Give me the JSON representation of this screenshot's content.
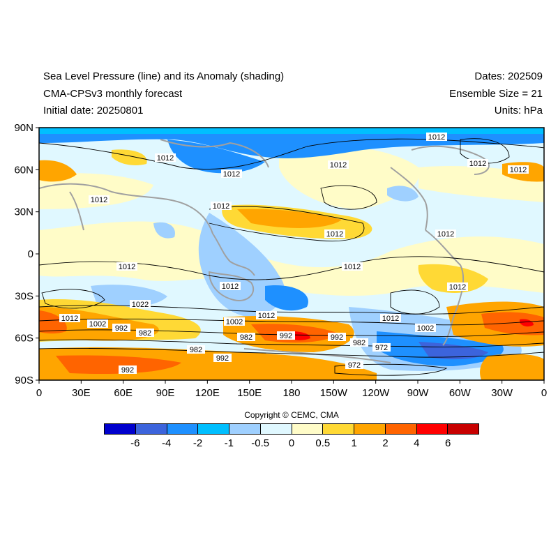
{
  "header": {
    "title_line1": "Sea Level Pressure (line) and its Anomaly (shading)",
    "title_line2": "CMA-CPSv3 monthly forecast",
    "title_line3": "Initial date: 20250801",
    "dates": "Dates: 202509",
    "ensemble": "Ensemble Size = 21",
    "units": "Units: hPa"
  },
  "map": {
    "lat_labels": [
      "90N",
      "60N",
      "30N",
      "0",
      "30S",
      "60S",
      "90S"
    ],
    "lon_labels": [
      "0",
      "30E",
      "60E",
      "90E",
      "120E",
      "150E",
      "180",
      "150W",
      "120W",
      "90W",
      "60W",
      "30W",
      "0"
    ],
    "contour_labels": [
      "1012",
      "1012",
      "1012",
      "1012",
      "1012",
      "1012",
      "1012",
      "1012",
      "1012",
      "1012",
      "1012",
      "1012",
      "1012",
      "1012",
      "1012",
      "1012",
      "1022",
      "1012",
      "1002",
      "1002",
      "1002",
      "992",
      "982",
      "982",
      "992",
      "982",
      "992",
      "982",
      "972",
      "972",
      "992",
      "992"
    ]
  },
  "copyright": "Copyright © CEMC, CMA",
  "colorbar": {
    "colors": [
      "#0000cd",
      "#3c64dc",
      "#1e90ff",
      "#00bfff",
      "#9fd0ff",
      "#e0f8ff",
      "#fffcc8",
      "#ffd935",
      "#ffa500",
      "#ff6400",
      "#ff0000",
      "#c80000"
    ],
    "labels": [
      "-6",
      "-4",
      "-2",
      "-1",
      "-0.5",
      "0",
      "0.5",
      "1",
      "2",
      "4",
      "6"
    ]
  }
}
